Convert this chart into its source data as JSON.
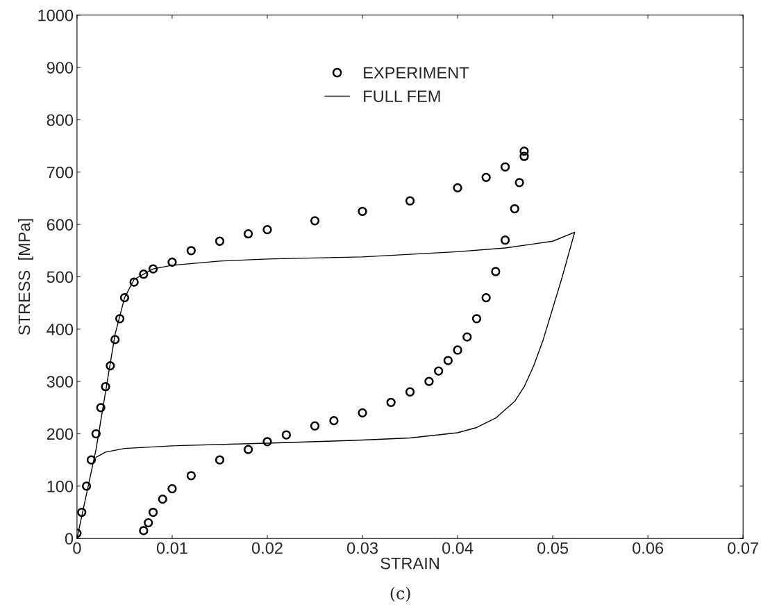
{
  "chart_data": {
    "type": "scatter",
    "xlabel": "STRAIN",
    "ylabel": "STRESS  [MPa]",
    "xlim": [
      0,
      0.07
    ],
    "ylim": [
      0,
      1000
    ],
    "xticks": [
      0,
      0.01,
      0.02,
      0.03,
      0.04,
      0.05,
      0.06,
      0.07
    ],
    "yticks": [
      0,
      100,
      200,
      300,
      400,
      500,
      600,
      700,
      800,
      900,
      1000
    ],
    "grid": false,
    "legend": "top left",
    "annotations": [
      "(c)"
    ],
    "series": [
      {
        "name": "EXPERIMENT",
        "marker": "circle",
        "color": "#000000",
        "x": [
          0,
          0.0005,
          0.001,
          0.0015,
          0.002,
          0.0025,
          0.003,
          0.0035,
          0.004,
          0.0045,
          0.005,
          0.006,
          0.007,
          0.008,
          0.01,
          0.012,
          0.015,
          0.018,
          0.02,
          0.025,
          0.03,
          0.035,
          0.04,
          0.043,
          0.045,
          0.047,
          0.047,
          0.0465,
          0.046,
          0.045,
          0.044,
          0.043,
          0.042,
          0.041,
          0.04,
          0.039,
          0.038,
          0.037,
          0.035,
          0.033,
          0.03,
          0.027,
          0.025,
          0.022,
          0.02,
          0.018,
          0.015,
          0.012,
          0.01,
          0.009,
          0.008,
          0.0075,
          0.007
        ],
        "values": [
          10,
          50,
          100,
          150,
          200,
          250,
          290,
          330,
          380,
          420,
          460,
          490,
          505,
          515,
          528,
          550,
          568,
          582,
          590,
          607,
          625,
          645,
          670,
          690,
          710,
          740,
          730,
          680,
          630,
          570,
          510,
          460,
          420,
          385,
          360,
          340,
          320,
          300,
          280,
          260,
          240,
          225,
          215,
          198,
          185,
          170,
          150,
          120,
          95,
          75,
          50,
          30,
          15
        ]
      },
      {
        "name": "FULL FEM",
        "type": "line",
        "marker": "none",
        "line_style": "solid",
        "color": "#000000",
        "x": [
          0,
          0.002,
          0.004,
          0.005,
          0.006,
          0.008,
          0.01,
          0.015,
          0.02,
          0.03,
          0.04,
          0.045,
          0.05,
          0.0523,
          0.051,
          0.05,
          0.049,
          0.048,
          0.047,
          0.046,
          0.044,
          0.042,
          0.04,
          0.035,
          0.03,
          0.02,
          0.01,
          0.005,
          0.003,
          0.002
        ],
        "values": [
          0,
          170,
          390,
          460,
          495,
          515,
          522,
          530,
          534,
          538,
          548,
          555,
          568,
          585,
          500,
          440,
          380,
          330,
          290,
          262,
          230,
          212,
          202,
          192,
          188,
          182,
          177,
          172,
          165,
          155
        ]
      }
    ]
  }
}
